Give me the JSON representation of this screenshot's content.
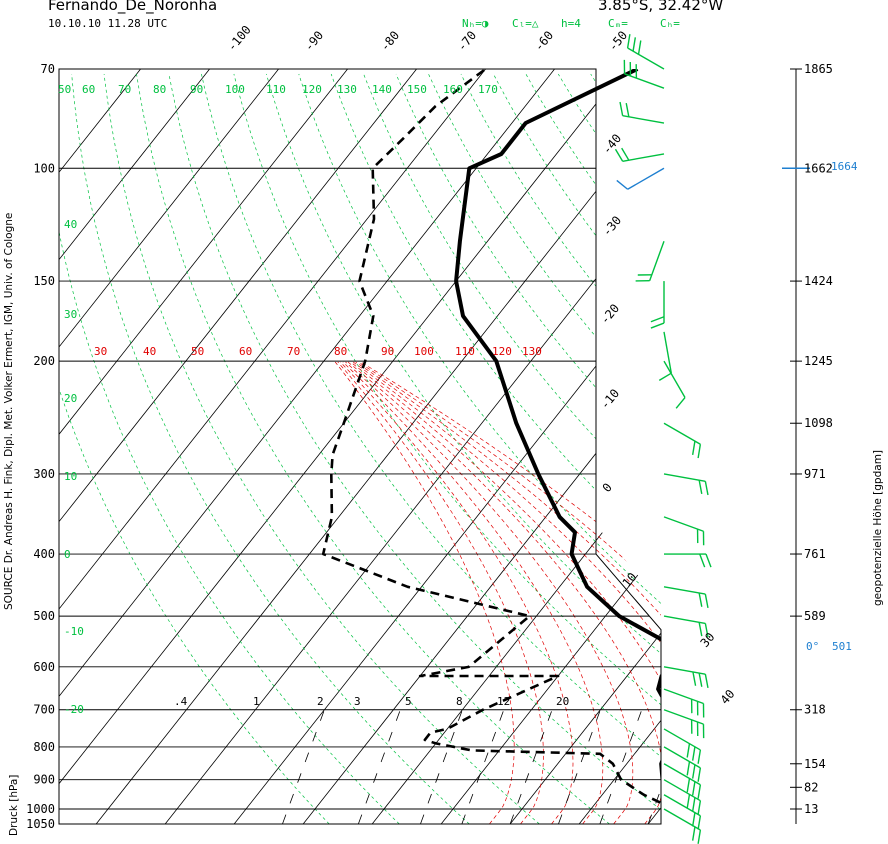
{
  "header": {
    "station": "Fernando_De_Noronha",
    "datetime": "10.10.10  11.28 UTC",
    "location": "3.85°S, 32.42°W",
    "cloud_legend": [
      "Nₕ=◑",
      "Cₗ=△",
      "h=4",
      "Cₘ=",
      "Cₕ="
    ]
  },
  "side_labels": {
    "source": "SOURCE Dr. Andreas H. Fink, Dipl. Met. Volker Ermert, IGM, Univ. of Cologne",
    "pressure_axis": "Druck [hPa]",
    "height_axis": "geopotenzielle Höhe [gpdam]",
    "zero_iso": "0°",
    "zero_iso_value": "501",
    "trop_value": "1664"
  },
  "colors": {
    "frame": "#000000",
    "dry_adiabat": "#00c040",
    "moist_adiabat": "#e00000",
    "wind": "#00c040",
    "wind_highlight": "#1e7fd0",
    "info": "#1e7fd0"
  },
  "chart_data": {
    "type": "line",
    "title": "Fernando_De_Noronha",
    "ylabel": "Druck [hPa]",
    "y_scale": "log",
    "y_range": [
      1050,
      70
    ],
    "pressure_ticks": [
      "70",
      "100",
      "150",
      "200",
      "300",
      "400",
      "500",
      "600",
      "700",
      "800",
      "900",
      "1000",
      "1050"
    ],
    "height_ticks": [
      {
        "p": 70,
        "label": "1865"
      },
      {
        "p": 100,
        "label": "1662"
      },
      {
        "p": 150,
        "label": "1424"
      },
      {
        "p": 200,
        "label": "1245"
      },
      {
        "p": 250,
        "label": "1098"
      },
      {
        "p": 300,
        "label": "971"
      },
      {
        "p": 400,
        "label": "761"
      },
      {
        "p": 500,
        "label": "589"
      },
      {
        "p": 700,
        "label": "318"
      },
      {
        "p": 850,
        "label": "154"
      },
      {
        "p": 925,
        "label": "82"
      },
      {
        "p": 1000,
        "label": "13"
      }
    ],
    "isotherm_labels": [
      "-100",
      "-90",
      "-80",
      "-70",
      "-60",
      "-50",
      "-40",
      "-30",
      "-20",
      "-10",
      "0",
      "10",
      "30",
      "40"
    ],
    "dry_adiabat_labels_top": [
      "50",
      "60",
      "70",
      "80",
      "90",
      "100",
      "110",
      "120",
      "130",
      "140",
      "150",
      "160",
      "170"
    ],
    "dry_adiabat_labels_left": [
      "40",
      "30",
      "20",
      "10",
      "0",
      "-10",
      "-20"
    ],
    "moist_adiabat_labels": [
      "30",
      "40",
      "50",
      "60",
      "70",
      "80",
      "90",
      "100",
      "110",
      "120",
      "130"
    ],
    "mixing_ratio_labels": [
      ".4",
      "1",
      "2",
      "3",
      "5",
      "8",
      "12",
      "20"
    ],
    "series": [
      {
        "name": "T",
        "points": [
          [
            1000,
            25.5
          ],
          [
            980,
            21
          ],
          [
            960,
            20
          ],
          [
            940,
            20
          ],
          [
            925,
            18.5
          ],
          [
            900,
            17
          ],
          [
            850,
            15
          ],
          [
            800,
            14
          ],
          [
            750,
            14
          ],
          [
            700,
            10
          ],
          [
            650,
            6
          ],
          [
            620,
            5
          ],
          [
            580,
            5
          ],
          [
            550,
            2
          ],
          [
            500,
            -8
          ],
          [
            450,
            -16
          ],
          [
            400,
            -22
          ],
          [
            370,
            -24
          ],
          [
            350,
            -28
          ],
          [
            300,
            -36
          ],
          [
            250,
            -45
          ],
          [
            200,
            -55
          ],
          [
            170,
            -65
          ],
          [
            150,
            -70
          ],
          [
            130,
            -74
          ],
          [
            100,
            -81
          ],
          [
            95,
            -78
          ],
          [
            85,
            -78
          ],
          [
            70,
            -68
          ]
        ]
      },
      {
        "name": "Td",
        "points": [
          [
            1000,
            22
          ],
          [
            950,
            16
          ],
          [
            900,
            11
          ],
          [
            850,
            8
          ],
          [
            820,
            5
          ],
          [
            810,
            -14
          ],
          [
            790,
            -20
          ],
          [
            780,
            -22
          ],
          [
            760,
            -22
          ],
          [
            750,
            -20
          ],
          [
            700,
            -17
          ],
          [
            620,
            -10
          ],
          [
            620,
            -30
          ],
          [
            600,
            -24
          ],
          [
            500,
            -21
          ],
          [
            450,
            -42
          ],
          [
            400,
            -58
          ],
          [
            350,
            -61
          ],
          [
            300,
            -66
          ],
          [
            280,
            -68
          ],
          [
            250,
            -70
          ],
          [
            200,
            -74
          ],
          [
            170,
            -78
          ],
          [
            150,
            -84
          ],
          [
            120,
            -89
          ],
          [
            100,
            -95
          ],
          [
            90,
            -94
          ],
          [
            80,
            -93
          ],
          [
            70,
            -90
          ]
        ]
      }
    ],
    "winds": [
      {
        "p": 70,
        "dir": 300,
        "kt": 30
      },
      {
        "p": 75,
        "dir": 290,
        "kt": 25
      },
      {
        "p": 85,
        "dir": 280,
        "kt": 20
      },
      {
        "p": 95,
        "dir": 260,
        "kt": 15
      },
      {
        "p": 100,
        "dir": 240,
        "kt": 10
      },
      {
        "p": 130,
        "dir": 200,
        "kt": 15
      },
      {
        "p": 150,
        "dir": 180,
        "kt": 20
      },
      {
        "p": 180,
        "dir": 170,
        "kt": 10
      },
      {
        "p": 200,
        "dir": 150,
        "kt": 10
      },
      {
        "p": 250,
        "dir": 120,
        "kt": 15
      },
      {
        "p": 300,
        "dir": 100,
        "kt": 20
      },
      {
        "p": 350,
        "dir": 110,
        "kt": 20
      },
      {
        "p": 400,
        "dir": 90,
        "kt": 15
      },
      {
        "p": 450,
        "dir": 100,
        "kt": 20
      },
      {
        "p": 500,
        "dir": 100,
        "kt": 20
      },
      {
        "p": 600,
        "dir": 100,
        "kt": 25
      },
      {
        "p": 650,
        "dir": 110,
        "kt": 25
      },
      {
        "p": 700,
        "dir": 110,
        "kt": 25
      },
      {
        "p": 750,
        "dir": 120,
        "kt": 30
      },
      {
        "p": 800,
        "dir": 120,
        "kt": 30
      },
      {
        "p": 850,
        "dir": 120,
        "kt": 30
      },
      {
        "p": 900,
        "dir": 120,
        "kt": 25
      },
      {
        "p": 950,
        "dir": 120,
        "kt": 20
      },
      {
        "p": 1000,
        "dir": 120,
        "kt": 15
      }
    ]
  }
}
